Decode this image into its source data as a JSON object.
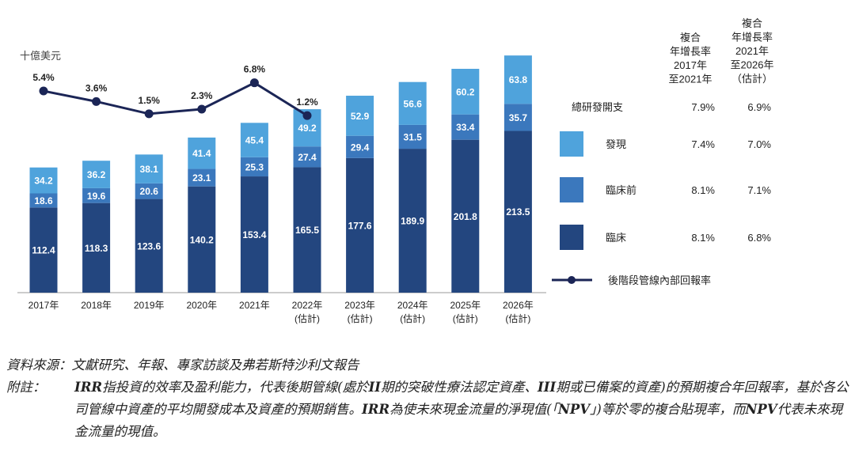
{
  "chart_data": {
    "type": "bar",
    "stacked": true,
    "unit_label": "十億美元",
    "categories": [
      "2017年",
      "2018年",
      "2019年",
      "2020年",
      "2021年",
      "2022年",
      "2023年",
      "2024年",
      "2025年",
      "2026年"
    ],
    "category_sublabels": [
      "",
      "",
      "",
      "",
      "",
      "(估計)",
      "(估計)",
      "(估計)",
      "(估計)",
      "(估計)"
    ],
    "series": [
      {
        "name": "臨床",
        "color": "#23467f",
        "values": [
          112.4,
          118.3,
          123.6,
          140.2,
          153.4,
          165.5,
          177.6,
          189.9,
          201.8,
          213.5
        ]
      },
      {
        "name": "臨床前",
        "color": "#3b78bd",
        "values": [
          18.6,
          19.6,
          20.6,
          23.1,
          25.3,
          27.4,
          29.4,
          31.5,
          33.4,
          35.7
        ]
      },
      {
        "name": "發現",
        "color": "#4fa3dc",
        "values": [
          34.2,
          36.2,
          38.1,
          41.4,
          45.4,
          49.2,
          52.9,
          56.6,
          60.2,
          63.8
        ]
      }
    ],
    "line_series": {
      "name": "後階段管線內部回報率",
      "color": "#1b2556",
      "values": [
        5.4,
        3.6,
        1.5,
        2.3,
        6.8,
        1.2
      ],
      "labels": [
        "5.4%",
        "3.6%",
        "1.5%",
        "2.3%",
        "6.8%",
        "1.2%"
      ]
    },
    "cagr_table": {
      "headers": [
        [
          "複合",
          "年增長率",
          "2017年",
          "至2021年"
        ],
        [
          "複合",
          "年增長率",
          "2021年",
          "至2026年",
          "（估計）"
        ]
      ],
      "rows": [
        {
          "label": "總研發開支",
          "values": [
            "7.9%",
            "6.9%"
          ]
        },
        {
          "label": "發現",
          "values": [
            "7.4%",
            "7.0%"
          ]
        },
        {
          "label": "臨床前",
          "values": [
            "8.1%",
            "7.1%"
          ]
        },
        {
          "label": "臨床",
          "values": [
            "8.1%",
            "6.8%"
          ]
        }
      ]
    },
    "legend_position": "right",
    "grid": false
  },
  "notes": {
    "source": "資料來源：文獻研究、年報、專家訪談及弗若斯特沙利文報告",
    "note_label": "附註：",
    "note_parts": [
      {
        "t": "IRR",
        "b": true
      },
      {
        "t": "指投資的效率及盈利能力，代表後期管線(處於",
        "b": false
      },
      {
        "t": "II",
        "b": true
      },
      {
        "t": "期的突破性療法認定資產、",
        "b": false
      },
      {
        "t": "III",
        "b": true
      },
      {
        "t": "期或已備案的資產)的預期複合年回報率，基於各公司管線中資產的平均開發成本及資產的預期銷售。",
        "b": false
      },
      {
        "t": "IRR",
        "b": true
      },
      {
        "t": "為使未來現金流量的淨現值(「",
        "b": false
      },
      {
        "t": "NPV",
        "b": true
      },
      {
        "t": "」)等於零的複合貼現率，而",
        "b": false
      },
      {
        "t": "NPV",
        "b": true
      },
      {
        "t": "代表未來現金流量的現值。",
        "b": false
      }
    ]
  }
}
